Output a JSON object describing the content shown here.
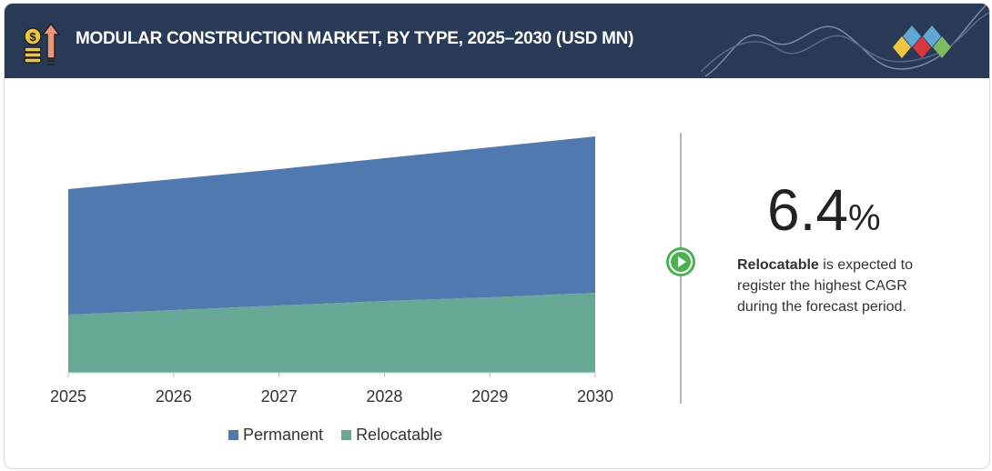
{
  "header": {
    "title": "MODULAR CONSTRUCTION MARKET, BY TYPE, 2025–2030 (USD MN)"
  },
  "colors": {
    "header_bg": "#283a56",
    "permanent": "#5079b0",
    "relocatable": "#68a896",
    "play": "#4caf50"
  },
  "chart_data": {
    "type": "area",
    "stacked": true,
    "title": "",
    "xlabel": "",
    "ylabel": "",
    "categories": [
      "2025",
      "2026",
      "2027",
      "2028",
      "2029",
      "2030"
    ],
    "ylim": [
      0,
      260
    ],
    "y_axis_shown": false,
    "grid": false,
    "legend_placement": "bottom",
    "series": [
      {
        "name": "Relocatable",
        "color": "#68a896",
        "values": [
          64,
          69,
          74,
          79,
          83,
          88
        ]
      },
      {
        "name": "Permanent",
        "color": "#5079b0",
        "values": [
          138,
          144,
          150,
          157,
          165,
          172
        ]
      }
    ]
  },
  "legend": {
    "items": [
      "Permanent",
      "Relocatable"
    ]
  },
  "highlight": {
    "value": "6.4",
    "unit": "%",
    "segment": "Relocatable",
    "text": " is expected to register the highest CAGR during the forecast period."
  }
}
